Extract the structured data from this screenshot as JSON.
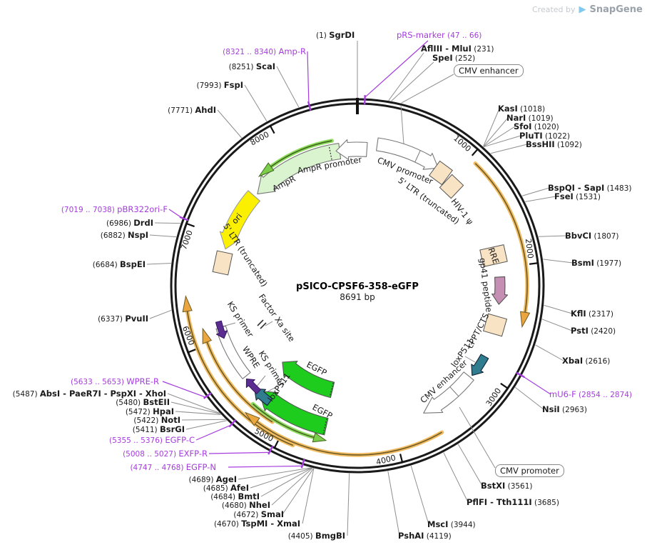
{
  "watermark": {
    "prefix": "Created by",
    "brand": "SnapGene"
  },
  "plasmid": {
    "name": "pSICO-CPSF6-358-eGFP",
    "size": "8691 bp"
  },
  "ring": [
    "1000",
    "2000",
    "3000",
    "4000",
    "5000",
    "6000",
    "7000",
    "8000"
  ],
  "boxed": {
    "cmv_enhancer": "CMV enhancer",
    "cmv_promoter": "CMV promoter"
  },
  "features": {
    "cmv_promoter_top": "CMV promoter",
    "ltr5_top": "5' LTR (truncated)",
    "hiv_psi": "HIV-1 ψ",
    "rre": "RRE",
    "gp41": "gp41 peptide",
    "cppt": "cPPT/CTS",
    "loxp_right": "loxP511",
    "cmv_enh_inner": "CMV enhancer",
    "loxp_left": "loxP511",
    "ks_upper": "KS primer",
    "ks_lower": "KS primer",
    "egfp_upper": "EGFP",
    "egfp_lower": "EGFP",
    "wpre": "WPRE",
    "factor_xa": "Factor Xa site",
    "ori": "ori",
    "ltr5_left": "5' LTR (truncated)",
    "ampr": "AmpR",
    "ampr_promoter": "AmpR promoter"
  },
  "sites": {
    "sgrdi": {
      "pre": "(1) ",
      "name": "SgrDI"
    },
    "prs": {
      "name": "pRS-marker",
      "post": "  (47 .. 66)"
    },
    "afliii": {
      "name": "AflIII - MluI",
      "post": "  (231)"
    },
    "spei": {
      "name": "SpeI",
      "post": "  (252)"
    },
    "kasi": {
      "name": "KasI",
      "post": "  (1018)"
    },
    "nari": {
      "name": "NarI",
      "post": "  (1019)"
    },
    "sfoi": {
      "name": "SfoI",
      "post": "  (1020)"
    },
    "pluti": {
      "name": "PluTI",
      "post": "  (1022)"
    },
    "bsshii": {
      "name": "BssHII",
      "post": "  (1092)"
    },
    "bspqi": {
      "name": "BspQI - SapI",
      "post": "  (1483)"
    },
    "fsei": {
      "name": "FseI",
      "post": "  (1531)"
    },
    "bbvci": {
      "name": "BbvCI",
      "post": "  (1807)"
    },
    "bsmi": {
      "name": "BsmI",
      "post": "  (1977)"
    },
    "kfli": {
      "name": "KflI",
      "post": "  (2317)"
    },
    "psti": {
      "name": "PstI",
      "post": "  (2420)"
    },
    "xbai": {
      "name": "XbaI",
      "post": "  (2616)"
    },
    "mu6f": {
      "name": "mU6-F",
      "post": "  (2854 .. 2874)"
    },
    "nsii": {
      "name": "NsiI",
      "post": "  (2963)"
    },
    "bstxi": {
      "name": "BstXI",
      "post": "  (3561)"
    },
    "pflfi": {
      "name": "PflFI - Tth111I",
      "post": "  (3685)"
    },
    "msci": {
      "name": "MscI",
      "post": "  (3944)"
    },
    "pshai": {
      "name": "PshAI",
      "post": "  (4119)"
    },
    "bmgbi": {
      "pre": "(4405) ",
      "name": "BmgBI"
    },
    "tspmi": {
      "pre": "(4670) ",
      "name": "TspMI - XmaI"
    },
    "smai": {
      "pre": "(4672) ",
      "name": "SmaI"
    },
    "nhei": {
      "pre": "(4680) ",
      "name": "NheI"
    },
    "bmti": {
      "pre": "(4684) ",
      "name": "BmtI"
    },
    "afei": {
      "pre": "(4685) ",
      "name": "AfeI"
    },
    "agei": {
      "pre": "(4689) ",
      "name": "AgeI"
    },
    "egfpn": {
      "pre": "(4747 .. 4768) ",
      "name": "EGFP-N"
    },
    "exfpr": {
      "pre": "(5008 .. 5027) ",
      "name": "EXFP-R"
    },
    "egfpc": {
      "pre": "(5355 .. 5376) ",
      "name": "EGFP-C"
    },
    "bsrgi": {
      "pre": "(5411) ",
      "name": "BsrGI"
    },
    "noti": {
      "pre": "(5422) ",
      "name": "NotI"
    },
    "hpai": {
      "pre": "(5472) ",
      "name": "HpaI"
    },
    "bsteii": {
      "pre": "(5480) ",
      "name": "BstEII"
    },
    "absi": {
      "pre": "(5487) ",
      "name": "AbsI - PaeR7I - PspXI - XhoI"
    },
    "wprer": {
      "pre": "(5633 .. 5653) ",
      "name": "WPRE-R"
    },
    "pvuii": {
      "pre": "(6337) ",
      "name": "PvuII"
    },
    "bspei": {
      "pre": "(6684) ",
      "name": "BspEI"
    },
    "nspi": {
      "pre": "(6882) ",
      "name": "NspI"
    },
    "drdi": {
      "pre": "(6986) ",
      "name": "DrdI"
    },
    "pbrori": {
      "pre": "(7019 .. 7038) ",
      "name": "pBR322ori-F"
    },
    "ahdi": {
      "pre": "(7771) ",
      "name": "AhdI"
    },
    "fspi": {
      "pre": "(7993) ",
      "name": "FspI"
    },
    "scai": {
      "pre": "(8251) ",
      "name": "ScaI"
    },
    "amprf": {
      "pre": "(8321 .. 8340) ",
      "name": "Amp-R"
    }
  },
  "colors": {
    "purple": "#A53CDE",
    "leader": "#8f8f8f",
    "ring": "#1a1a1a",
    "wheat": "#F8E3C4",
    "yellow": "#FBF000",
    "green": "#1ECC1E",
    "pale_green": "#D9F4CE",
    "orange_halo": "#F2BD62",
    "teal": "#2F7D8E",
    "mauve": "#C48FB2"
  }
}
